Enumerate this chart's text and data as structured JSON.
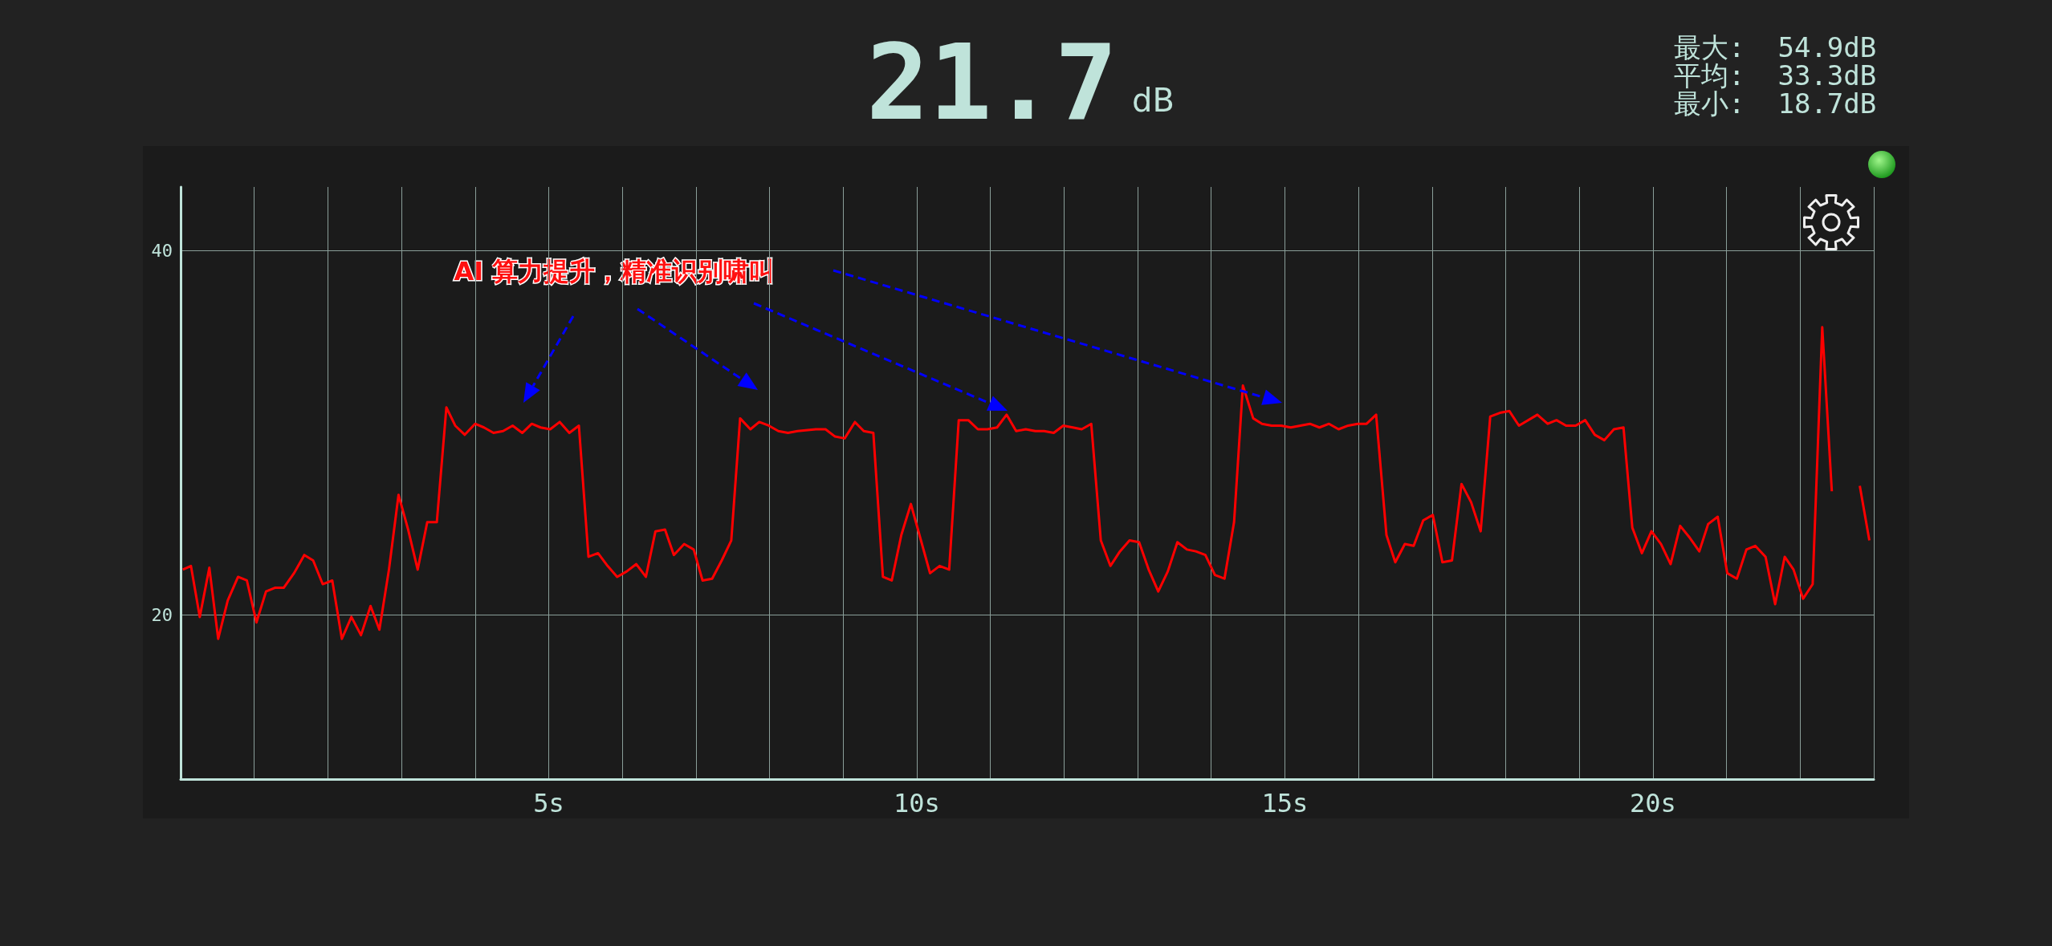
{
  "chart_data": {
    "type": "line",
    "title": "21.7",
    "subtitle": "dB",
    "annotations": [
      "最大:  54.9dB",
      "平均:  33.3dB",
      "最小:  18.7dB",
      "AI 算力提升，精准识别啸叫"
    ],
    "x": [
      0.03,
      0.14,
      0.26,
      0.39,
      0.51,
      0.64,
      0.78,
      0.9,
      1.03,
      1.16,
      1.28,
      1.4,
      1.54,
      1.68,
      1.8,
      1.93,
      2.06,
      2.19,
      2.32,
      2.45,
      2.58,
      2.7,
      2.83,
      2.96,
      3.09,
      3.22,
      3.35,
      3.48,
      3.61,
      3.73,
      3.86,
      4.0,
      4.12,
      4.25,
      4.38,
      4.51,
      4.64,
      4.77,
      4.89,
      5.02,
      5.15,
      5.28,
      5.41,
      5.54,
      5.67,
      5.8,
      5.93,
      6.06,
      6.19,
      6.32,
      6.45,
      6.58,
      6.7,
      6.84,
      6.97,
      7.09,
      7.22,
      7.35,
      7.48,
      7.6,
      7.74,
      7.86,
      7.99,
      8.12,
      8.25,
      8.38,
      8.63,
      8.76,
      8.89,
      9.02,
      9.16,
      9.28,
      9.41,
      9.54,
      9.66,
      9.79,
      9.92,
      10.05,
      10.18,
      10.31,
      10.44,
      10.57,
      10.7,
      10.83,
      10.96,
      11.09,
      11.22,
      11.35,
      11.48,
      11.61,
      11.73,
      11.86,
      11.99,
      12.12,
      12.24,
      12.37,
      12.5,
      12.63,
      12.76,
      12.89,
      13.02,
      13.15,
      13.28,
      13.41,
      13.54,
      13.67,
      13.79,
      13.92,
      14.05,
      14.18,
      14.31,
      14.43,
      14.57,
      14.69,
      14.82,
      14.95,
      15.08,
      15.21,
      15.34,
      15.47,
      15.6,
      15.73,
      15.86,
      15.99,
      16.11,
      16.24,
      16.38,
      16.5,
      16.63,
      16.75,
      16.88,
      17.01,
      17.14,
      17.27,
      17.4,
      17.53,
      17.66,
      17.79,
      17.92,
      18.05,
      18.18,
      18.43,
      18.57,
      18.69,
      18.82,
      18.95,
      19.08,
      19.21,
      19.34,
      19.47,
      19.6,
      19.72,
      19.85,
      19.98,
      20.11,
      20.24,
      20.37,
      20.49,
      20.63,
      20.75,
      20.88,
      21.01,
      21.14,
      21.27,
      21.39,
      21.53,
      21.66,
      21.79,
      21.91,
      22.04,
      22.17,
      22.3,
      22.43,
      22.51,
      22.65,
      22.81,
      22.94
    ],
    "series": [
      {
        "color": "#ff0000",
        "values": [
          22.5,
          22.7,
          19.9,
          22.6,
          18.7,
          20.8,
          22.1,
          21.9,
          19.6,
          21.3,
          21.5,
          21.5,
          22.3,
          23.3,
          23.0,
          21.7,
          21.9,
          18.7,
          19.9,
          18.9,
          20.5,
          19.2,
          22.5,
          26.6,
          24.7,
          22.5,
          25.1,
          25.1,
          31.4,
          30.4,
          29.9,
          30.5,
          30.3,
          30.0,
          30.1,
          30.4,
          30.0,
          30.5,
          30.3,
          30.2,
          30.6,
          30.0,
          30.4,
          23.2,
          23.4,
          22.7,
          22.1,
          22.4,
          22.8,
          22.1,
          24.6,
          24.7,
          23.3,
          23.9,
          23.6,
          21.9,
          22.0,
          23.0,
          24.1,
          30.8,
          30.2,
          30.6,
          30.4,
          30.1,
          30.0,
          30.1,
          30.2,
          30.2,
          29.8,
          29.7,
          30.6,
          30.1,
          30.0,
          22.1,
          21.9,
          24.4,
          26.1,
          24.2,
          22.3,
          22.7,
          22.5,
          30.7,
          30.7,
          30.2,
          30.2,
          30.3,
          31.0,
          30.1,
          30.2,
          30.1,
          30.1,
          30.0,
          30.4,
          30.3,
          30.2,
          30.5,
          24.1,
          22.7,
          23.5,
          24.1,
          24.0,
          22.5,
          21.3,
          22.4,
          24.0,
          23.6,
          23.5,
          23.3,
          22.2,
          22.0,
          25.1,
          32.6,
          30.8,
          30.5,
          30.4,
          30.4,
          30.3,
          30.4,
          30.5,
          30.3,
          30.5,
          30.2,
          30.4,
          30.5,
          30.5,
          31.0,
          24.4,
          22.9,
          23.9,
          23.8,
          25.2,
          25.5,
          22.9,
          23.0,
          27.2,
          26.2,
          24.6,
          30.9,
          31.1,
          31.2,
          30.4,
          31.0,
          30.5,
          30.7,
          30.4,
          30.4,
          30.7,
          29.9,
          29.6,
          30.2,
          30.3,
          24.8,
          23.4,
          24.6,
          23.9,
          22.8,
          24.9,
          24.3,
          23.5,
          25.0,
          25.4,
          22.3,
          22.0,
          23.6,
          23.8,
          23.2,
          20.6,
          23.2,
          22.5,
          20.9,
          21.7,
          35.8,
          26.8,
          null,
          null,
          27.1,
          24.1
        ]
      }
    ],
    "xlim": [
      0,
      23
    ],
    "ylim": [
      11,
      43.5
    ],
    "xticks": [
      {
        "value": 1,
        "label": null
      },
      {
        "value": 2,
        "label": null
      },
      {
        "value": 3,
        "label": null
      },
      {
        "value": 4,
        "label": null
      },
      {
        "value": 5,
        "label": "5s"
      },
      {
        "value": 6,
        "label": null
      },
      {
        "value": 7,
        "label": null
      },
      {
        "value": 8,
        "label": null
      },
      {
        "value": 9,
        "label": null
      },
      {
        "value": 10,
        "label": "10s"
      },
      {
        "value": 11,
        "label": null
      },
      {
        "value": 12,
        "label": null
      },
      {
        "value": 13,
        "label": null
      },
      {
        "value": 14,
        "label": null
      },
      {
        "value": 15,
        "label": "15s"
      },
      {
        "value": 16,
        "label": null
      },
      {
        "value": 17,
        "label": null
      },
      {
        "value": 18,
        "label": null
      },
      {
        "value": 19,
        "label": null
      },
      {
        "value": 20,
        "label": "20s"
      },
      {
        "value": 21,
        "label": null
      },
      {
        "value": 22,
        "label": null
      },
      {
        "value": 23,
        "label": null
      }
    ],
    "yticks": [
      20,
      40
    ],
    "grid": true,
    "marker": "none"
  }
}
